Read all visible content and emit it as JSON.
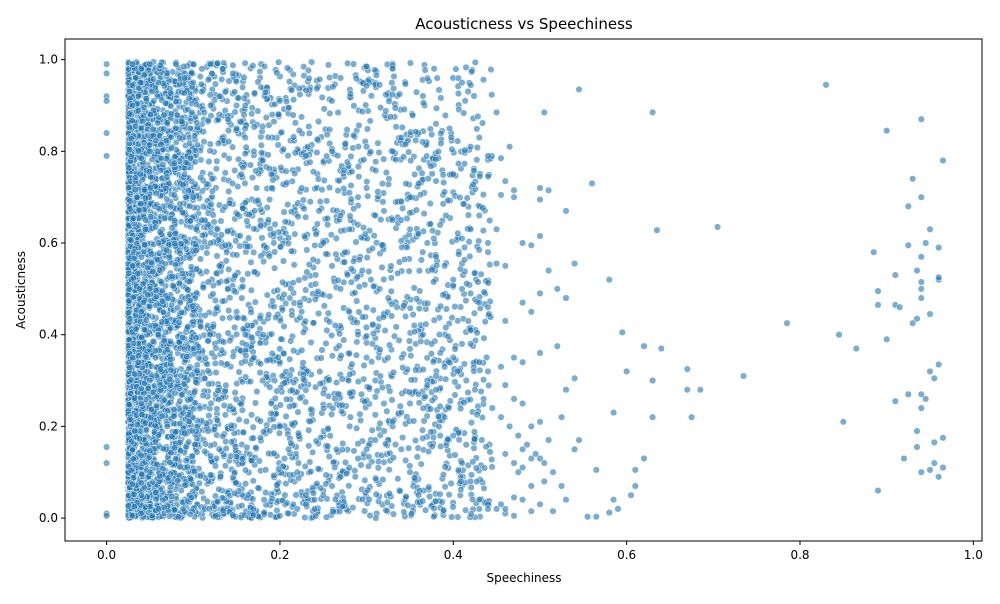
{
  "chart_data": {
    "type": "scatter",
    "title": "Acousticness vs Speechiness",
    "xlabel": "Speechiness",
    "ylabel": "Acousticness",
    "xlim": [
      -0.048,
      1.01
    ],
    "ylim": [
      -0.05,
      1.045
    ],
    "xticks": [
      0.0,
      0.2,
      0.4,
      0.6,
      0.8,
      1.0
    ],
    "xtick_labels": [
      "0.0",
      "0.2",
      "0.4",
      "0.6",
      "0.8",
      "1.0"
    ],
    "yticks": [
      0.0,
      0.2,
      0.4,
      0.6,
      0.8,
      1.0
    ],
    "ytick_labels": [
      "0.0",
      "0.2",
      "0.4",
      "0.6",
      "0.8",
      "1.0"
    ],
    "grid": false,
    "legend": "none",
    "marker_color": "#1f77b4",
    "marker_alpha": 0.6,
    "points": [
      [
        0.0,
        0.99
      ],
      [
        0.0,
        0.97
      ],
      [
        0.0,
        0.92
      ],
      [
        0.0,
        0.91
      ],
      [
        0.0,
        0.84
      ],
      [
        0.0,
        0.79
      ],
      [
        0.0,
        0.155
      ],
      [
        0.0,
        0.12
      ],
      [
        0.0,
        0.01
      ],
      [
        0.0,
        0.005
      ],
      [
        0.03,
        0.99
      ],
      [
        0.04,
        0.98
      ],
      [
        0.05,
        0.99
      ],
      [
        0.06,
        0.95
      ],
      [
        0.07,
        0.97
      ],
      [
        0.08,
        0.99
      ],
      [
        0.09,
        0.96
      ],
      [
        0.1,
        0.99
      ],
      [
        0.12,
        0.99
      ],
      [
        0.11,
        0.98
      ],
      [
        0.13,
        0.92
      ],
      [
        0.15,
        0.9
      ],
      [
        0.16,
        0.9
      ],
      [
        0.2,
        0.91
      ],
      [
        0.21,
        0.895
      ],
      [
        0.225,
        0.875
      ],
      [
        0.26,
        0.91
      ],
      [
        0.27,
        0.96
      ],
      [
        0.31,
        0.945
      ],
      [
        0.315,
        0.945
      ],
      [
        0.33,
        0.98
      ],
      [
        0.41,
        0.95
      ],
      [
        0.45,
        0.885
      ],
      [
        0.505,
        0.885
      ],
      [
        0.545,
        0.935
      ],
      [
        0.63,
        0.885
      ],
      [
        0.83,
        0.945
      ],
      [
        0.9,
        0.845
      ],
      [
        0.94,
        0.87
      ],
      [
        0.03,
        0.9
      ],
      [
        0.04,
        0.85
      ],
      [
        0.05,
        0.8
      ],
      [
        0.035,
        0.7
      ],
      [
        0.045,
        0.65
      ],
      [
        0.06,
        0.6
      ],
      [
        0.03,
        0.55
      ],
      [
        0.05,
        0.5
      ],
      [
        0.04,
        0.45
      ],
      [
        0.06,
        0.4
      ],
      [
        0.03,
        0.35
      ],
      [
        0.05,
        0.3
      ],
      [
        0.04,
        0.25
      ],
      [
        0.07,
        0.2
      ],
      [
        0.03,
        0.15
      ],
      [
        0.05,
        0.1
      ],
      [
        0.04,
        0.05
      ],
      [
        0.06,
        0.02
      ],
      [
        0.03,
        0.005
      ],
      [
        0.08,
        0.85
      ],
      [
        0.09,
        0.75
      ],
      [
        0.1,
        0.7
      ],
      [
        0.11,
        0.65
      ],
      [
        0.12,
        0.6
      ],
      [
        0.13,
        0.55
      ],
      [
        0.14,
        0.5
      ],
      [
        0.15,
        0.45
      ],
      [
        0.16,
        0.4
      ],
      [
        0.17,
        0.35
      ],
      [
        0.18,
        0.3
      ],
      [
        0.19,
        0.25
      ],
      [
        0.2,
        0.2
      ],
      [
        0.21,
        0.15
      ],
      [
        0.22,
        0.1
      ],
      [
        0.23,
        0.05
      ],
      [
        0.24,
        0.02
      ],
      [
        0.25,
        0.6
      ],
      [
        0.26,
        0.55
      ],
      [
        0.27,
        0.5
      ],
      [
        0.28,
        0.45
      ],
      [
        0.29,
        0.4
      ],
      [
        0.3,
        0.35
      ],
      [
        0.31,
        0.3
      ],
      [
        0.32,
        0.25
      ],
      [
        0.33,
        0.2
      ],
      [
        0.34,
        0.15
      ],
      [
        0.35,
        0.1
      ],
      [
        0.36,
        0.05
      ],
      [
        0.37,
        0.3
      ],
      [
        0.38,
        0.28
      ],
      [
        0.39,
        0.22
      ],
      [
        0.4,
        0.18
      ],
      [
        0.41,
        0.12
      ],
      [
        0.42,
        0.08
      ],
      [
        0.43,
        0.04
      ],
      [
        0.44,
        0.03
      ],
      [
        0.45,
        0.02
      ],
      [
        0.46,
        0.01
      ],
      [
        0.47,
        0.005
      ],
      [
        0.48,
        0.15
      ],
      [
        0.34,
        0.83
      ],
      [
        0.38,
        0.86
      ],
      [
        0.42,
        0.81
      ],
      [
        0.43,
        0.83
      ],
      [
        0.465,
        0.81
      ],
      [
        0.44,
        0.79
      ],
      [
        0.455,
        0.785
      ],
      [
        0.33,
        0.8
      ],
      [
        0.345,
        0.815
      ],
      [
        0.285,
        0.835
      ],
      [
        0.3,
        0.81
      ],
      [
        0.23,
        0.79
      ],
      [
        0.26,
        0.8
      ],
      [
        0.4,
        0.75
      ],
      [
        0.44,
        0.745
      ],
      [
        0.46,
        0.735
      ],
      [
        0.47,
        0.715
      ],
      [
        0.5,
        0.72
      ],
      [
        0.51,
        0.715
      ],
      [
        0.56,
        0.73
      ],
      [
        0.53,
        0.67
      ],
      [
        0.5,
        0.695
      ],
      [
        0.47,
        0.7
      ],
      [
        0.455,
        0.705
      ],
      [
        0.38,
        0.735
      ],
      [
        0.36,
        0.73
      ],
      [
        0.35,
        0.7
      ],
      [
        0.34,
        0.69
      ],
      [
        0.3,
        0.72
      ],
      [
        0.29,
        0.7
      ],
      [
        0.43,
        0.66
      ],
      [
        0.45,
        0.63
      ],
      [
        0.42,
        0.63
      ],
      [
        0.41,
        0.61
      ],
      [
        0.44,
        0.6
      ],
      [
        0.5,
        0.615
      ],
      [
        0.51,
        0.54
      ],
      [
        0.48,
        0.6
      ],
      [
        0.49,
        0.595
      ],
      [
        0.46,
        0.55
      ],
      [
        0.45,
        0.555
      ],
      [
        0.44,
        0.58
      ],
      [
        0.52,
        0.5
      ],
      [
        0.53,
        0.48
      ],
      [
        0.54,
        0.555
      ],
      [
        0.5,
        0.49
      ],
      [
        0.48,
        0.47
      ],
      [
        0.49,
        0.45
      ],
      [
        0.46,
        0.43
      ],
      [
        0.47,
        0.35
      ],
      [
        0.5,
        0.36
      ],
      [
        0.52,
        0.375
      ],
      [
        0.48,
        0.34
      ],
      [
        0.455,
        0.33
      ],
      [
        0.44,
        0.32
      ],
      [
        0.43,
        0.34
      ],
      [
        0.42,
        0.38
      ],
      [
        0.46,
        0.29
      ],
      [
        0.47,
        0.26
      ],
      [
        0.48,
        0.25
      ],
      [
        0.49,
        0.2
      ],
      [
        0.5,
        0.21
      ],
      [
        0.525,
        0.22
      ],
      [
        0.53,
        0.28
      ],
      [
        0.54,
        0.305
      ],
      [
        0.51,
        0.17
      ],
      [
        0.54,
        0.15
      ],
      [
        0.545,
        0.17
      ],
      [
        0.49,
        0.13
      ],
      [
        0.5,
        0.13
      ],
      [
        0.47,
        0.12
      ],
      [
        0.48,
        0.11
      ],
      [
        0.46,
        0.14
      ],
      [
        0.475,
        0.1
      ],
      [
        0.49,
        0.07
      ],
      [
        0.505,
        0.08
      ],
      [
        0.525,
        0.07
      ],
      [
        0.53,
        0.04
      ],
      [
        0.5,
        0.03
      ],
      [
        0.48,
        0.04
      ],
      [
        0.47,
        0.045
      ],
      [
        0.455,
        0.03
      ],
      [
        0.44,
        0.02
      ],
      [
        0.43,
        0.02
      ],
      [
        0.46,
        0.02
      ],
      [
        0.49,
        0.015
      ],
      [
        0.515,
        0.015
      ],
      [
        0.555,
        0.003
      ],
      [
        0.565,
        0.003
      ],
      [
        0.58,
        0.012
      ],
      [
        0.585,
        0.04
      ],
      [
        0.59,
        0.02
      ],
      [
        0.605,
        0.05
      ],
      [
        0.61,
        0.07
      ],
      [
        0.61,
        0.105
      ],
      [
        0.565,
        0.105
      ],
      [
        0.585,
        0.23
      ],
      [
        0.595,
        0.405
      ],
      [
        0.6,
        0.32
      ],
      [
        0.62,
        0.13
      ],
      [
        0.62,
        0.375
      ],
      [
        0.63,
        0.3
      ],
      [
        0.63,
        0.22
      ],
      [
        0.635,
        0.628
      ],
      [
        0.64,
        0.37
      ],
      [
        0.67,
        0.28
      ],
      [
        0.67,
        0.325
      ],
      [
        0.675,
        0.22
      ],
      [
        0.685,
        0.28
      ],
      [
        0.705,
        0.635
      ],
      [
        0.58,
        0.52
      ],
      [
        0.735,
        0.31
      ],
      [
        0.785,
        0.425
      ],
      [
        0.845,
        0.4
      ],
      [
        0.85,
        0.21
      ],
      [
        0.865,
        0.37
      ],
      [
        0.885,
        0.58
      ],
      [
        0.89,
        0.06
      ],
      [
        0.89,
        0.495
      ],
      [
        0.89,
        0.465
      ],
      [
        0.9,
        0.39
      ],
      [
        0.91,
        0.53
      ],
      [
        0.91,
        0.255
      ],
      [
        0.91,
        0.465
      ],
      [
        0.915,
        0.46
      ],
      [
        0.92,
        0.13
      ],
      [
        0.925,
        0.68
      ],
      [
        0.925,
        0.595
      ],
      [
        0.925,
        0.27
      ],
      [
        0.93,
        0.74
      ],
      [
        0.93,
        0.425
      ],
      [
        0.935,
        0.435
      ],
      [
        0.935,
        0.54
      ],
      [
        0.935,
        0.19
      ],
      [
        0.935,
        0.155
      ],
      [
        0.94,
        0.7
      ],
      [
        0.94,
        0.57
      ],
      [
        0.94,
        0.48
      ],
      [
        0.94,
        0.5
      ],
      [
        0.94,
        0.24
      ],
      [
        0.94,
        0.27
      ],
      [
        0.945,
        0.26
      ],
      [
        0.94,
        0.1
      ],
      [
        0.945,
        0.6
      ],
      [
        0.95,
        0.63
      ],
      [
        0.95,
        0.445
      ],
      [
        0.95,
        0.32
      ],
      [
        0.955,
        0.305
      ],
      [
        0.955,
        0.165
      ],
      [
        0.955,
        0.12
      ],
      [
        0.96,
        0.59
      ],
      [
        0.96,
        0.52
      ],
      [
        0.96,
        0.335
      ],
      [
        0.965,
        0.78
      ],
      [
        0.965,
        0.175
      ],
      [
        0.965,
        0.11
      ],
      [
        0.96,
        0.09
      ],
      [
        0.95,
        0.105
      ],
      [
        0.96,
        0.525
      ],
      [
        0.94,
        0.515
      ],
      [
        0.27,
        0.66
      ],
      [
        0.28,
        0.63
      ],
      [
        0.29,
        0.64
      ],
      [
        0.31,
        0.66
      ],
      [
        0.32,
        0.67
      ],
      [
        0.33,
        0.65
      ],
      [
        0.34,
        0.65
      ],
      [
        0.35,
        0.63
      ],
      [
        0.36,
        0.62
      ],
      [
        0.37,
        0.6
      ],
      [
        0.38,
        0.57
      ],
      [
        0.39,
        0.55
      ],
      [
        0.4,
        0.52
      ],
      [
        0.41,
        0.5
      ],
      [
        0.42,
        0.49
      ],
      [
        0.43,
        0.47
      ],
      [
        0.44,
        0.46
      ],
      [
        0.42,
        0.41
      ],
      [
        0.41,
        0.38
      ],
      [
        0.4,
        0.35
      ],
      [
        0.39,
        0.33
      ],
      [
        0.38,
        0.31
      ],
      [
        0.37,
        0.29
      ],
      [
        0.36,
        0.27
      ],
      [
        0.35,
        0.25
      ],
      [
        0.34,
        0.23
      ],
      [
        0.33,
        0.21
      ],
      [
        0.32,
        0.19
      ],
      [
        0.31,
        0.17
      ],
      [
        0.3,
        0.15
      ],
      [
        0.29,
        0.13
      ],
      [
        0.28,
        0.11
      ],
      [
        0.27,
        0.09
      ],
      [
        0.26,
        0.07
      ],
      [
        0.25,
        0.05
      ],
      [
        0.24,
        0.04
      ],
      [
        0.23,
        0.03
      ],
      [
        0.22,
        0.02
      ],
      [
        0.21,
        0.01
      ],
      [
        0.2,
        0.005
      ],
      [
        0.19,
        0.75
      ],
      [
        0.18,
        0.78
      ],
      [
        0.17,
        0.8
      ],
      [
        0.16,
        0.83
      ],
      [
        0.15,
        0.85
      ],
      [
        0.14,
        0.87
      ],
      [
        0.13,
        0.88
      ],
      [
        0.12,
        0.9
      ],
      [
        0.11,
        0.93
      ],
      [
        0.1,
        0.95
      ],
      [
        0.225,
        0.72
      ],
      [
        0.235,
        0.69
      ],
      [
        0.245,
        0.67
      ],
      [
        0.255,
        0.64
      ],
      [
        0.265,
        0.61
      ],
      [
        0.275,
        0.58
      ],
      [
        0.285,
        0.56
      ],
      [
        0.295,
        0.54
      ],
      [
        0.305,
        0.52
      ],
      [
        0.315,
        0.5
      ],
      [
        0.325,
        0.48
      ],
      [
        0.335,
        0.46
      ],
      [
        0.345,
        0.44
      ],
      [
        0.355,
        0.42
      ],
      [
        0.365,
        0.4
      ],
      [
        0.375,
        0.38
      ],
      [
        0.385,
        0.36
      ],
      [
        0.395,
        0.34
      ],
      [
        0.405,
        0.32
      ],
      [
        0.415,
        0.3
      ],
      [
        0.425,
        0.28
      ],
      [
        0.435,
        0.26
      ],
      [
        0.445,
        0.24
      ],
      [
        0.455,
        0.22
      ],
      [
        0.465,
        0.2
      ],
      [
        0.475,
        0.18
      ],
      [
        0.485,
        0.16
      ],
      [
        0.495,
        0.14
      ],
      [
        0.505,
        0.12
      ],
      [
        0.515,
        0.1
      ]
    ]
  }
}
